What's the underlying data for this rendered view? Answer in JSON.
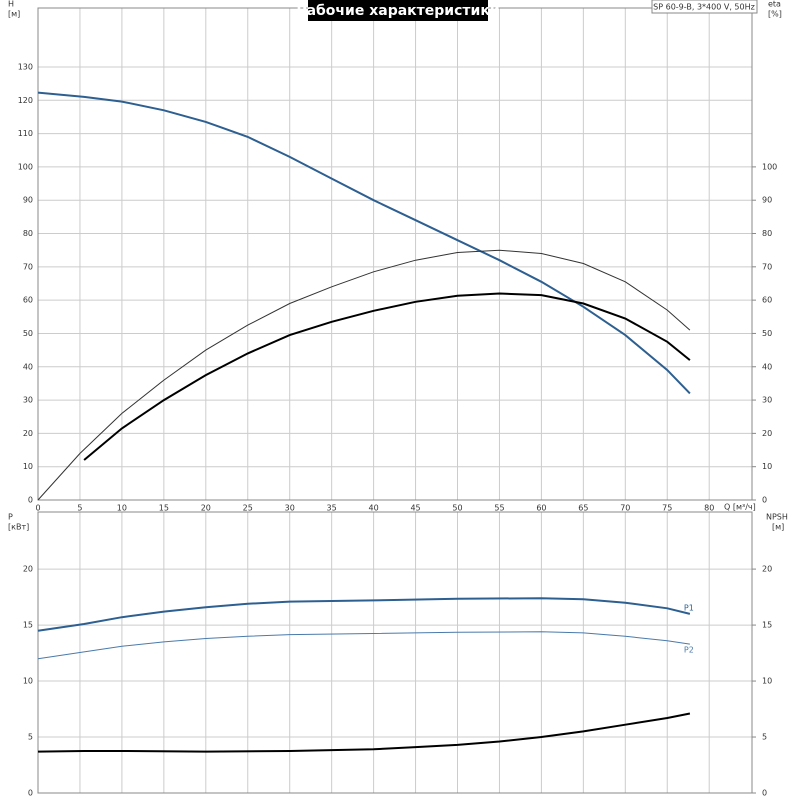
{
  "chart_data": [
    {
      "type": "line",
      "title": "Рабочие характеристики",
      "subtitle": "SP 60-9-B, 3*400 V, 50Hz",
      "xlabel": "Q [м³/ч]",
      "ylabel": "H",
      "yunit": "[м]",
      "y2label": "eta",
      "y2unit": "[%]",
      "xlim": [
        0,
        85.1
      ],
      "xticks": [
        0,
        5,
        10,
        15,
        20,
        25,
        30,
        35,
        40,
        45,
        50,
        55,
        60,
        65,
        70,
        75,
        80
      ],
      "ylim": [
        0,
        147.7
      ],
      "yticks": [
        0,
        10,
        20,
        30,
        40,
        50,
        60,
        70,
        80,
        90,
        100,
        110,
        120,
        130
      ],
      "y2lim": [
        0,
        147.7
      ],
      "y2ticks": [
        0,
        10,
        20,
        30,
        40,
        50,
        60,
        70,
        80,
        90,
        100
      ],
      "grid": true,
      "series": [
        {
          "color": "#2d5f91",
          "width": 2,
          "x": [
            0,
            5.5,
            10,
            15,
            20,
            25,
            30,
            35,
            40,
            45,
            50,
            55,
            60,
            65,
            70,
            75,
            77.7
          ],
          "values": [
            122.3,
            121,
            119.6,
            117,
            113.5,
            109,
            103,
            96.5,
            90,
            84,
            78,
            72,
            65.5,
            58,
            49.5,
            39,
            32
          ]
        },
        {
          "color": "#333333",
          "width": 1,
          "axis": "y2",
          "x": [
            0,
            5,
            10,
            15,
            20,
            25,
            30,
            35,
            40,
            45,
            50,
            55,
            60,
            65,
            70,
            75,
            77.7
          ],
          "values": [
            0,
            14,
            26,
            36,
            45,
            52.5,
            59,
            64,
            68.5,
            72,
            74.3,
            75,
            74,
            71,
            65.5,
            57,
            51
          ]
        },
        {
          "color": "#000000",
          "width": 2,
          "axis": "y2",
          "x": [
            5.5,
            10,
            15,
            20,
            25,
            30,
            35,
            40,
            45,
            50,
            55,
            60,
            65,
            70,
            75,
            77.7
          ],
          "values": [
            12,
            21.5,
            30,
            37.5,
            44,
            49.5,
            53.5,
            56.8,
            59.5,
            61.3,
            62,
            61.5,
            59,
            54.5,
            47.5,
            42
          ]
        }
      ]
    },
    {
      "type": "line",
      "ylabel": "P",
      "yunit": "[кВт]",
      "y2label": "NPSH",
      "y2unit": "[м]",
      "xlim": [
        0,
        85.1
      ],
      "ylim": [
        0,
        25.1
      ],
      "yticks": [
        0,
        5,
        10,
        15,
        20
      ],
      "y2lim": [
        0,
        25.1
      ],
      "y2ticks": [
        0,
        5,
        10,
        15,
        20
      ],
      "grid": true,
      "series": [
        {
          "name": "P1",
          "color": "#2d5f91",
          "width": 2,
          "x": [
            0,
            5.5,
            10,
            15,
            20,
            25,
            30,
            40,
            50,
            60,
            65,
            70,
            75,
            77.7
          ],
          "values": [
            14.5,
            15.1,
            15.7,
            16.2,
            16.6,
            16.9,
            17.1,
            17.2,
            17.35,
            17.4,
            17.3,
            17,
            16.5,
            16
          ]
        },
        {
          "name": "P2",
          "color": "#4a7aab",
          "width": 1,
          "x": [
            0,
            5.5,
            10,
            15,
            20,
            25,
            30,
            40,
            50,
            60,
            65,
            70,
            75,
            77.7
          ],
          "values": [
            12,
            12.6,
            13.1,
            13.5,
            13.8,
            14,
            14.15,
            14.25,
            14.35,
            14.4,
            14.3,
            14,
            13.6,
            13.3
          ]
        },
        {
          "color": "#000000",
          "width": 2,
          "axis": "y2",
          "x": [
            0,
            5.5,
            10,
            20,
            30,
            40,
            45,
            50,
            55,
            60,
            65,
            70,
            75,
            77.7
          ],
          "values": [
            3.7,
            3.75,
            3.75,
            3.7,
            3.75,
            3.9,
            4.1,
            4.3,
            4.6,
            5,
            5.5,
            6.1,
            6.7,
            7.1
          ]
        }
      ]
    }
  ]
}
